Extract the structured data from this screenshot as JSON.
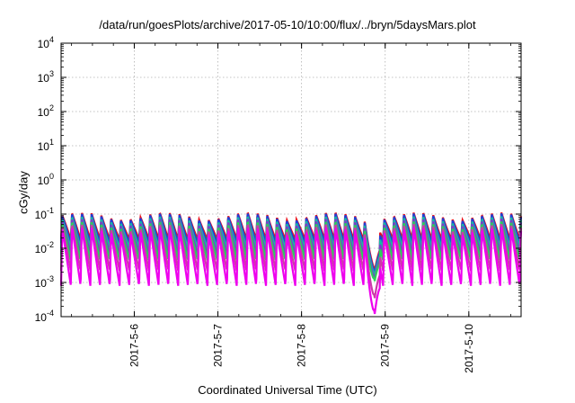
{
  "chart_data": {
    "type": "line",
    "title": "/data/run/goesPlots/archive/2017-05-10/10:00/flux/../bryn/5daysMars.plot",
    "xlabel": "Coordinated Universal Time (UTC)",
    "ylabel": "cGy/day",
    "yscale": "log",
    "ylim": [
      0.0001,
      10000
    ],
    "xlim": [
      "2017-05-05 03:00",
      "2017-05-10 15:00"
    ],
    "grid": true,
    "y_ticks": [
      {
        "mant": "10",
        "exp": "-4",
        "value": 0.0001
      },
      {
        "mant": "10",
        "exp": "-3",
        "value": 0.001
      },
      {
        "mant": "10",
        "exp": "-2",
        "value": 0.01
      },
      {
        "mant": "10",
        "exp": "-1",
        "value": 0.1
      },
      {
        "mant": "10",
        "exp": "0",
        "value": 1
      },
      {
        "mant": "10",
        "exp": "1",
        "value": 10
      },
      {
        "mant": "10",
        "exp": "2",
        "value": 100
      },
      {
        "mant": "10",
        "exp": "3",
        "value": 1000
      },
      {
        "mant": "10",
        "exp": "4",
        "value": 10000
      }
    ],
    "x_ticks": [
      "2017-5-6",
      "2017-5-7",
      "2017-5-8",
      "2017-5-9",
      "2017-5-10"
    ],
    "oscillation_period_hours": 2.8,
    "dropout": {
      "start": "2017-05-08 18:00",
      "bottom": "2017-05-08 21:00",
      "end": "2017-05-08 22:30"
    },
    "series": [
      {
        "color": "#e8101c",
        "peak": 0.09,
        "trough": 0.018,
        "dropout_min": 0.0022
      },
      {
        "color": "#1f3fd8",
        "peak": 0.085,
        "trough": 0.014,
        "dropout_min": 0.0019
      },
      {
        "color": "#17b8a6",
        "peak": 0.07,
        "trough": 0.01,
        "dropout_min": 0.0016
      },
      {
        "color": "#7a3fc8",
        "peak": 0.06,
        "trough": 0.0065,
        "dropout_min": 0.0013
      },
      {
        "color": "#2bd05a",
        "peak": 0.05,
        "trough": 0.0045,
        "dropout_min": 0.0011
      },
      {
        "color": "#cc3aa8",
        "peak": 0.042,
        "trough": 0.0022,
        "dropout_min": 0.00035
      },
      {
        "color": "#ee00ee",
        "peak": 0.035,
        "trough": 0.0008,
        "dropout_min": 0.00012
      }
    ]
  }
}
